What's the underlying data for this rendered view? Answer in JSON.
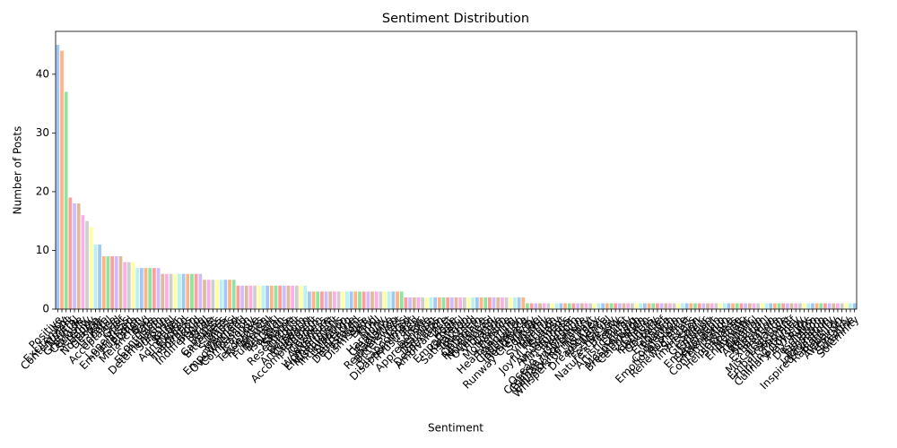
{
  "chart_data": {
    "type": "bar",
    "title": "Sentiment Distribution",
    "x_label": "Sentiment",
    "y_label": "Number of Posts",
    "categories": [
      "Positive",
      "Joy",
      "Excitement",
      "Contentment",
      "Neutral",
      "Gratitude",
      "Curiosity",
      "Serenity",
      "Happy",
      "Nostalgia",
      "Despair",
      "Awe",
      "Hopeful",
      "Acceptance",
      "Sad",
      "Grief",
      "Loneliness",
      "Embarrassed",
      "Euphoria",
      "Elation",
      "Melancholy",
      "Bad",
      "Hate",
      "Confusion",
      "Enthusiasm",
      "Determination",
      "Surprise",
      "Fearful",
      "Anger",
      "Admiration",
      "Excited",
      "Happiness",
      "Inspiration",
      "Proud",
      "Indifference",
      "Playful",
      "Pride",
      "Regret",
      "Calmness",
      "Bitterness",
      "Bitter",
      "Sadness",
      "Inspired",
      "Empowerment",
      "Overwhelmed",
      "Compassion",
      "Jealousy",
      "Love",
      "Tenderness",
      "Reflection",
      "Arousal",
      "Fulfillment",
      "Betrayal",
      "Isolation",
      "Jealous",
      "Shame",
      "Resentment",
      "Disgust",
      "Boredom",
      "Anticipation",
      "Confident",
      "Accomplishment",
      "Freedom",
      "Coziness",
      "Adventure",
      "Wonderment",
      "Enchantment",
      "Mischievous",
      "Intimidation",
      "Suffering",
      "Heartache",
      "Devastated",
      "Envious",
      "Dismissive",
      "Envy",
      "Kind",
      "Thrill",
      "Harmony",
      "Creativity",
      "Radiance",
      "Rejuvenation",
      "Bittersweet",
      "Loss",
      "Disappointed",
      "Disappointment",
      "Frustrated",
      "Fear",
      "Sorrow",
      "Apprehensive",
      "Yearning",
      "Darkness",
      "Desperation",
      "Ambivalence",
      "Zest",
      "Hope",
      "Empathetic",
      "Grateful",
      "Satisfaction",
      "Touched",
      "Blessed",
      "Optimism",
      "Reverence",
      "Numbness",
      "Overjoyed",
      "Vibrancy",
      "Dazzle",
      "Motivation",
      "Pensive",
      "Heartwarming",
      "Tranquility",
      "Captivation",
      "Innerpeace",
      "Heartbreak",
      "Runway Creativity",
      "Solitude",
      "Wistful",
      "Sympathy",
      "Intrigue",
      "Joyful Reunion",
      "Ecstasy",
      "Amusement",
      "Mindfulness",
      "Wonder",
      "Ocean's Freedom",
      "Creative Inspiration",
      "Culinary Adventure",
      "Envisioning History",
      "Whispers of the Past",
      "Journey",
      "Dreamchaser",
      "Resilience",
      "Marvel",
      "Festive Joy",
      "Nature's Beauty",
      "Iconic",
      "Artistic Burst",
      "Energy",
      "Mesmerizing",
      "Breakthrough",
      "Celebration",
      "Charm",
      "Kindness",
      "Positivity",
      "Obstacle",
      "Relief",
      "Elegance",
      "Triumph",
      "Connection",
      "Emotional Storm",
      "Romance",
      "Renewed Effort",
      "Success",
      "Immersion",
      "Spark",
      "Grandeur",
      "Emotion",
      "Engagement",
      "Exploration",
      "Friendship",
      "Contemplation",
      "Solace",
      "Helplessness",
      "Suspense",
      "Melodic",
      "Enjoyment",
      "Hypnotic",
      "Colorful",
      "Adoration",
      "Affection",
      "Sorrowful",
      "Exhaustion",
      "Pressure",
      "Miscalculation",
      "Lost Love",
      "Embarrassment",
      "Mischief",
      "Thrilling Journey",
      "Culinary Odyssey",
      "Playful Joy",
      "Ruins",
      "Desolation",
      "Jubilation",
      "Sensation",
      "Imagination",
      "Inspired Creativity",
      "Radiant Joy",
      "Rebellion",
      "Awestruck",
      "Dreamy",
      "Sunshine",
      "Solemnity"
    ],
    "values": [
      45,
      44,
      37,
      19,
      18,
      18,
      16,
      15,
      14,
      11,
      11,
      9,
      9,
      9,
      9,
      9,
      8,
      8,
      8,
      7,
      7,
      7,
      7,
      7,
      7,
      6,
      6,
      6,
      6,
      6,
      6,
      6,
      6,
      6,
      6,
      5,
      5,
      5,
      5,
      5,
      5,
      5,
      5,
      4,
      4,
      4,
      4,
      4,
      4,
      4,
      4,
      4,
      4,
      4,
      4,
      4,
      4,
      4,
      4,
      4,
      3,
      3,
      3,
      3,
      3,
      3,
      3,
      3,
      3,
      3,
      3,
      3,
      3,
      3,
      3,
      3,
      3,
      3,
      3,
      3,
      3,
      3,
      3,
      2,
      2,
      2,
      2,
      2,
      2,
      2,
      2,
      2,
      2,
      2,
      2,
      2,
      2,
      2,
      2,
      2,
      2,
      2,
      2,
      2,
      2,
      2,
      2,
      2,
      2,
      2,
      2,
      2,
      1,
      1,
      1,
      1,
      1,
      1,
      1,
      1,
      1,
      1,
      1,
      1,
      1,
      1,
      1,
      1,
      1,
      1,
      1,
      1,
      1,
      1,
      1,
      1,
      1,
      1,
      1,
      1,
      1,
      1,
      1,
      1,
      1,
      1,
      1,
      1,
      1,
      1,
      1,
      1,
      1,
      1,
      1,
      1,
      1,
      1,
      1,
      1,
      1,
      1,
      1,
      1,
      1,
      1,
      1,
      1,
      1,
      1,
      1,
      1,
      1,
      1,
      1,
      1,
      1,
      1,
      1,
      1,
      1,
      1,
      1,
      1,
      1,
      1,
      1,
      1,
      1,
      1,
      1
    ],
    "palette": [
      "#a1c9f4",
      "#ffb482",
      "#8de5a1",
      "#ff9f9b",
      "#d0bbff",
      "#debb9b",
      "#fab0e4",
      "#cfcfcf",
      "#fffea3",
      "#b9f2f0"
    ],
    "ylim": [
      0,
      47.3
    ],
    "yticks": [
      0,
      10,
      20,
      30,
      40
    ],
    "grid": false
  }
}
